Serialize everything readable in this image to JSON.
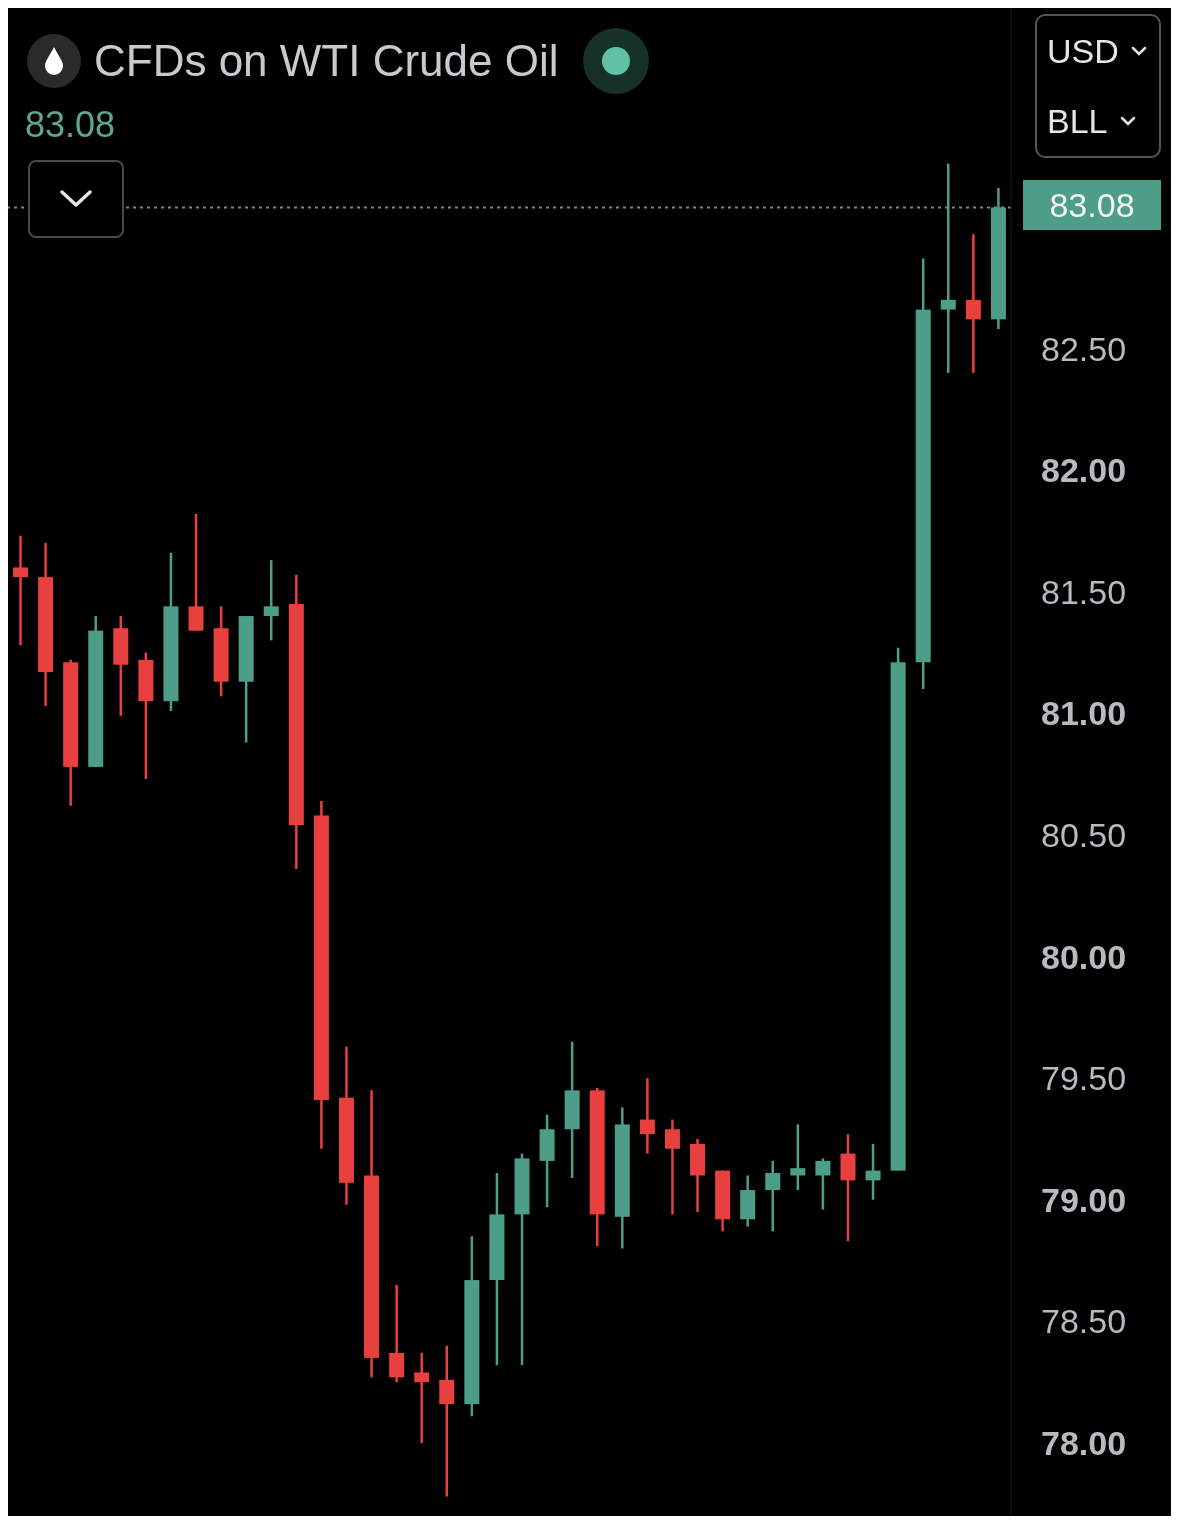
{
  "chart_data": {
    "type": "candlestick",
    "title": "CFDs on WTI Crude Oil",
    "subtitle": "83.08",
    "annotations": [
      "USD",
      "BLL"
    ],
    "categories": [
      null,
      null,
      null,
      null,
      null,
      null,
      null,
      null,
      null,
      null,
      null,
      null,
      null,
      null,
      null,
      null,
      null,
      null,
      null,
      null,
      null,
      null,
      null,
      null,
      null,
      null,
      null,
      null,
      null,
      null,
      null,
      null,
      null,
      null,
      null,
      null,
      null,
      null,
      null,
      null
    ],
    "ohlc": [
      [
        81.6,
        81.73,
        81.28,
        81.56
      ],
      [
        81.56,
        81.7,
        81.03,
        81.17
      ],
      [
        81.21,
        81.22,
        80.62,
        80.78
      ],
      [
        80.78,
        81.4,
        80.78,
        81.34
      ],
      [
        81.35,
        81.4,
        80.99,
        81.2
      ],
      [
        81.22,
        81.25,
        80.73,
        81.05
      ],
      [
        81.05,
        81.66,
        81.01,
        81.44
      ],
      [
        81.44,
        81.82,
        81.34,
        81.34
      ],
      [
        81.35,
        81.44,
        81.07,
        81.13
      ],
      [
        81.13,
        81.4,
        80.88,
        81.4
      ],
      [
        81.4,
        81.63,
        81.3,
        81.44
      ],
      [
        81.45,
        81.57,
        80.36,
        80.54
      ],
      [
        80.58,
        80.64,
        79.21,
        79.41
      ],
      [
        79.42,
        79.63,
        78.98,
        79.07
      ],
      [
        79.1,
        79.45,
        78.27,
        78.35
      ],
      [
        78.37,
        78.65,
        78.25,
        78.27
      ],
      [
        78.29,
        78.37,
        78.0,
        78.25
      ],
      [
        78.26,
        78.4,
        77.78,
        78.16
      ],
      [
        78.16,
        78.85,
        78.11,
        78.67
      ],
      [
        78.67,
        79.11,
        78.32,
        78.94
      ],
      [
        78.94,
        79.19,
        78.32,
        79.17
      ],
      [
        79.16,
        79.35,
        78.97,
        79.29
      ],
      [
        79.29,
        79.65,
        79.09,
        79.45
      ],
      [
        79.45,
        79.46,
        78.81,
        78.94
      ],
      [
        78.93,
        79.38,
        78.8,
        79.31
      ],
      [
        79.33,
        79.5,
        79.19,
        79.27
      ],
      [
        79.29,
        79.33,
        78.94,
        79.21
      ],
      [
        79.23,
        79.25,
        78.95,
        79.1
      ],
      [
        79.12,
        79.12,
        78.87,
        78.92
      ],
      [
        78.92,
        79.1,
        78.89,
        79.04
      ],
      [
        79.04,
        79.16,
        78.87,
        79.11
      ],
      [
        79.1,
        79.31,
        79.04,
        79.13
      ],
      [
        79.1,
        79.17,
        78.96,
        79.16
      ],
      [
        79.19,
        79.27,
        78.83,
        79.08
      ],
      [
        79.08,
        79.23,
        79.0,
        79.12
      ],
      [
        79.12,
        81.27,
        79.12,
        81.21
      ],
      [
        81.21,
        82.87,
        81.1,
        82.66
      ],
      [
        82.66,
        83.26,
        82.4,
        82.7
      ],
      [
        82.7,
        82.97,
        82.4,
        82.62
      ],
      [
        82.62,
        83.16,
        82.58,
        83.08
      ]
    ],
    "colors": [
      "#e8403e",
      "#e8403e",
      "#e8403e",
      "#4c9e88",
      "#e8403e",
      "#e8403e",
      "#4c9e88",
      "#e8403e",
      "#e8403e",
      "#4c9e88",
      "#4c9e88",
      "#e8403e",
      "#e8403e",
      "#e8403e",
      "#e8403e",
      "#e8403e",
      "#e8403e",
      "#e8403e",
      "#4c9e88",
      "#4c9e88",
      "#4c9e88",
      "#4c9e88",
      "#4c9e88",
      "#e8403e",
      "#4c9e88",
      "#e8403e",
      "#e8403e",
      "#e8403e",
      "#e8403e",
      "#4c9e88",
      "#4c9e88",
      "#4c9e88",
      "#4c9e88",
      "#e8403e",
      "#4c9e88",
      "#4c9e88",
      "#4c9e88",
      "#4c9e88",
      "#e8403e",
      "#4c9e88"
    ],
    "ylim": [
      77.7,
      83.9
    ],
    "yticks": [
      {
        "value": 78,
        "label": "78.00"
      },
      {
        "value": 78.5,
        "label": "78.50"
      },
      {
        "value": 79,
        "label": "79.00"
      },
      {
        "value": 79.5,
        "label": "79.50"
      },
      {
        "value": 80,
        "label": "80.00"
      },
      {
        "value": 80.5,
        "label": "80.50"
      },
      {
        "value": 81,
        "label": "81.00"
      },
      {
        "value": 81.5,
        "label": "81.50"
      },
      {
        "value": 82,
        "label": "82.00"
      },
      {
        "value": 82.5,
        "label": "82.50"
      }
    ],
    "ref_lines": [
      {
        "axis": "y",
        "value": 83.08,
        "label": "83.08",
        "color": "#4c9e88",
        "line_style": "dotted"
      }
    ],
    "tick_labels": "y",
    "grid": false,
    "legend": false
  }
}
